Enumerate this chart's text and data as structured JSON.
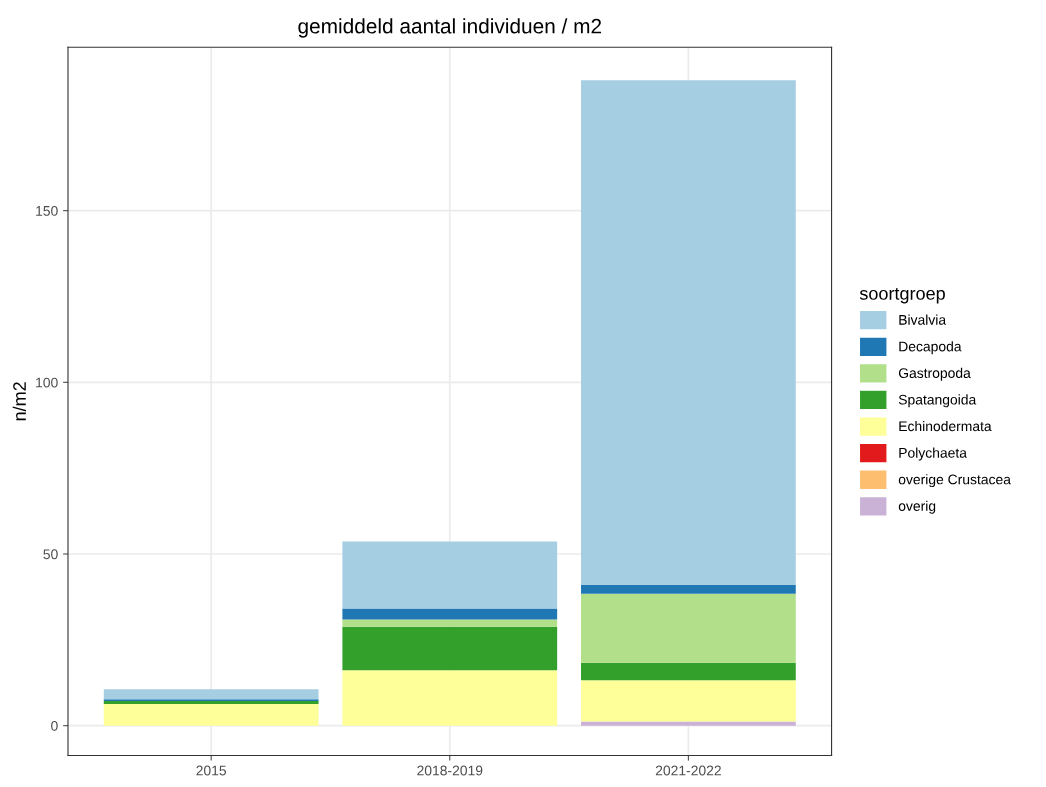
{
  "chart_data": {
    "type": "bar",
    "stacked": true,
    "title": "gemiddeld aantal individuen / m2",
    "ylabel": "n/m2",
    "legend_title": "soortgroep",
    "legend": "right",
    "grid": true,
    "categories": [
      "2015",
      "2018-2019",
      "2021-2022"
    ],
    "ylim": [
      -8.7,
      197.6
    ],
    "yticks": [
      0,
      50,
      100,
      150
    ],
    "series": [
      {
        "name": "overig",
        "color": "#cab2d6",
        "values": [
          0,
          null,
          1.2
        ]
      },
      {
        "name": "overige Crustacea",
        "color": "#fdbf6f",
        "values": [
          0,
          0,
          0
        ]
      },
      {
        "name": "Polychaeta",
        "color": "#e31a1c",
        "values": [
          0,
          0,
          0
        ]
      },
      {
        "name": "Echinodermata",
        "color": "#ffff99",
        "values": [
          6.3,
          16.1,
          12.0
        ]
      },
      {
        "name": "Spatangoida",
        "color": "#33a02c",
        "values": [
          0.9,
          12.7,
          5.1
        ]
      },
      {
        "name": "Gastropoda",
        "color": "#b2df8a",
        "values": [
          0,
          2.1,
          20.1
        ]
      },
      {
        "name": "Decapoda",
        "color": "#1f78b4",
        "values": [
          0.5,
          3.2,
          2.6
        ]
      },
      {
        "name": "Bivalvia",
        "color": "#a6cee3",
        "values": [
          2.9,
          19.5,
          147.0
        ]
      }
    ]
  }
}
